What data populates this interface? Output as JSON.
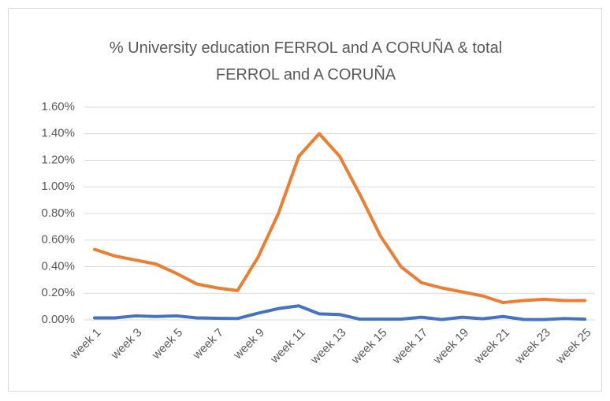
{
  "chart_data": {
    "type": "line",
    "title": "% University education FERROL and A CORUÑA & total FERROL and A CORUÑA",
    "categories": [
      "week 1",
      null,
      "week 3",
      null,
      "week 5",
      null,
      "week 7",
      null,
      "week 9",
      null,
      "week 11",
      null,
      "week 13",
      null,
      "week 15",
      null,
      "week 17",
      null,
      "week 19",
      null,
      "week 21",
      null,
      "week 23",
      null,
      "week 25"
    ],
    "series": [
      {
        "color": "#ed7d31",
        "values": [
          0.53,
          0.48,
          0.45,
          0.42,
          0.35,
          0.27,
          0.24,
          0.22,
          0.47,
          0.8,
          1.23,
          1.4,
          1.23,
          0.94,
          0.63,
          0.4,
          0.28,
          0.24,
          0.21,
          0.18,
          0.13,
          0.145,
          0.155,
          0.145,
          0.145
        ]
      },
      {
        "color": "#4472c4",
        "values": [
          0.015,
          0.015,
          0.03,
          0.025,
          0.03,
          0.015,
          0.012,
          0.01,
          0.05,
          0.085,
          0.105,
          0.045,
          0.04,
          0.005,
          0.005,
          0.005,
          0.02,
          0.002,
          0.02,
          0.008,
          0.025,
          0.003,
          0.002,
          0.01,
          0.005
        ]
      }
    ],
    "ylim": [
      0,
      1.6
    ],
    "yticks": [
      {
        "value": 0,
        "label": "0.00%"
      },
      {
        "value": 0.2,
        "label": "0.20%"
      },
      {
        "value": 0.4,
        "label": "0.40%"
      },
      {
        "value": 0.6,
        "label": "0.60%"
      },
      {
        "value": 0.8,
        "label": "0.80%"
      },
      {
        "value": 1.0,
        "label": "1.00%"
      },
      {
        "value": 1.2,
        "label": "1.20%"
      },
      {
        "value": 1.4,
        "label": "1.40%"
      },
      {
        "value": 1.6,
        "label": "1.60%"
      }
    ],
    "grid": true
  }
}
